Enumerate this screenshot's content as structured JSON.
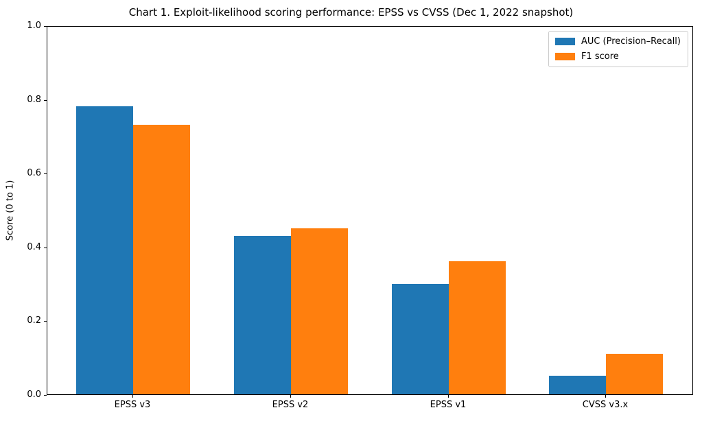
{
  "chart_data": {
    "type": "bar",
    "title": "Chart 1. Exploit-likelihood scoring performance: EPSS vs CVSS (Dec 1, 2022 snapshot)",
    "xlabel": "",
    "ylabel": "Score (0 to 1)",
    "ylim": [
      0,
      1.0
    ],
    "ytick_labels": [
      "0.0",
      "0.2",
      "0.4",
      "0.6",
      "0.8",
      "1.0"
    ],
    "categories": [
      "EPSS v3",
      "EPSS v2",
      "EPSS v1",
      "CVSS v3.x"
    ],
    "series": [
      {
        "name": "AUC (Precision–Recall)",
        "key": "auc-precision-recall",
        "color": "#1f77b4",
        "values": [
          0.78,
          0.43,
          0.3,
          0.05
        ]
      },
      {
        "name": "F1 score",
        "key": "f1-score",
        "color": "#ff7f0e",
        "values": [
          0.73,
          0.45,
          0.36,
          0.11
        ]
      }
    ],
    "legend_position": "upper right",
    "grid": false
  }
}
